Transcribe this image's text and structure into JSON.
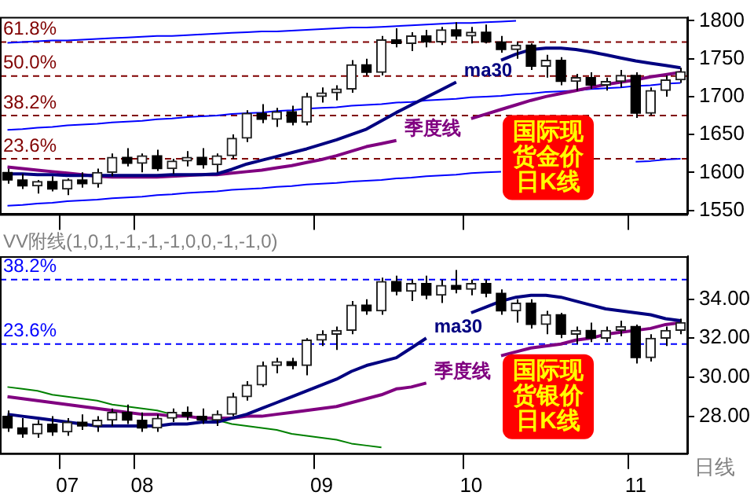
{
  "chart_data": [
    {
      "type": "candlestick",
      "tick_labels": "y",
      "categories": [
        null,
        null,
        null,
        null,
        "07",
        null,
        null,
        null,
        null,
        "08",
        null,
        null,
        null,
        null,
        null,
        null,
        null,
        null,
        null,
        null,
        null,
        "09",
        null,
        null,
        null,
        null,
        null,
        null,
        null,
        null,
        null,
        "10",
        null,
        null,
        null,
        null,
        null,
        null,
        null,
        null,
        null,
        null,
        "11",
        null,
        null,
        null
      ],
      "ohlc": [
        [
          1600,
          1605,
          1585,
          1590
        ],
        [
          1590,
          1598,
          1578,
          1582
        ],
        [
          1582,
          1590,
          1572,
          1588
        ],
        [
          1588,
          1595,
          1575,
          1578
        ],
        [
          1578,
          1592,
          1570,
          1590
        ],
        [
          1590,
          1600,
          1580,
          1585
        ],
        [
          1585,
          1605,
          1580,
          1600
        ],
        [
          1600,
          1625,
          1595,
          1620
        ],
        [
          1620,
          1632,
          1608,
          1612
        ],
        [
          1612,
          1625,
          1600,
          1622
        ],
        [
          1622,
          1630,
          1602,
          1605
        ],
        [
          1605,
          1618,
          1598,
          1615
        ],
        [
          1615,
          1628,
          1608,
          1620
        ],
        [
          1620,
          1632,
          1605,
          1610
        ],
        [
          1610,
          1625,
          1600,
          1622
        ],
        [
          1622,
          1650,
          1618,
          1645
        ],
        [
          1645,
          1682,
          1640,
          1678
        ],
        [
          1678,
          1690,
          1665,
          1670
        ],
        [
          1670,
          1685,
          1660,
          1680
        ],
        [
          1680,
          1688,
          1662,
          1666
        ],
        [
          1666,
          1705,
          1662,
          1700
        ],
        [
          1700,
          1712,
          1692,
          1705
        ],
        [
          1705,
          1715,
          1695,
          1710
        ],
        [
          1710,
          1748,
          1705,
          1742
        ],
        [
          1742,
          1750,
          1728,
          1732
        ],
        [
          1732,
          1780,
          1728,
          1775
        ],
        [
          1775,
          1790,
          1765,
          1770
        ],
        [
          1770,
          1785,
          1760,
          1780
        ],
        [
          1780,
          1788,
          1765,
          1772
        ],
        [
          1772,
          1792,
          1768,
          1788
        ],
        [
          1788,
          1798,
          1775,
          1780
        ],
        [
          1780,
          1792,
          1770,
          1785
        ],
        [
          1785,
          1795,
          1770,
          1772
        ],
        [
          1772,
          1780,
          1758,
          1762
        ],
        [
          1762,
          1772,
          1750,
          1768
        ],
        [
          1768,
          1770,
          1735,
          1740
        ],
        [
          1740,
          1755,
          1725,
          1748
        ],
        [
          1748,
          1752,
          1715,
          1720
        ],
        [
          1720,
          1730,
          1708,
          1725
        ],
        [
          1725,
          1732,
          1710,
          1715
        ],
        [
          1715,
          1725,
          1708,
          1720
        ],
        [
          1720,
          1735,
          1712,
          1728
        ],
        [
          1728,
          1732,
          1672,
          1678
        ],
        [
          1678,
          1712,
          1675,
          1708
        ],
        [
          1708,
          1728,
          1700,
          1722
        ],
        [
          1722,
          1738,
          1718,
          1733
        ]
      ],
      "series": [
        {
          "type": "line",
          "name": "ma30",
          "color": "#000080",
          "values": [
            1598,
            1598,
            1597,
            1597,
            1596,
            1596,
            1596,
            1596,
            1596,
            1596,
            1596,
            1597,
            1597,
            1597,
            1598,
            1604,
            1611,
            1616,
            1621,
            1626,
            1631,
            1637,
            1643,
            1650,
            1657,
            1668,
            1679,
            1689,
            1699,
            1709,
            1719,
            null,
            null,
            1748,
            1756,
            1762,
            1764,
            1764,
            1762,
            1759,
            1755,
            1751,
            1747,
            1744,
            1741,
            1738
          ]
        },
        {
          "type": "line",
          "name": "季度线",
          "color": "#800080",
          "values": [
            1607,
            1605,
            1603,
            1601,
            1599,
            1597,
            1595,
            1594,
            1594,
            1594,
            1594,
            1595,
            1596,
            1597,
            1597,
            1599,
            1601,
            1603,
            1606,
            1609,
            1613,
            1617,
            1622,
            1628,
            1634,
            1638,
            1642,
            null,
            null,
            null,
            null,
            1671,
            1677,
            1683,
            1689,
            1695,
            1700,
            1704,
            1708,
            1712,
            1716,
            1719,
            1722,
            1726,
            1729,
            1732
          ]
        },
        {
          "type": "line",
          "color": "#0000ff",
          "values": [
            1771,
            1772,
            1773,
            1774,
            1774,
            1775,
            1776,
            1777,
            1778,
            1779,
            1780,
            1780,
            1781,
            1782,
            1783,
            1784,
            1785,
            1786,
            1786,
            1787,
            1788,
            1789,
            1790,
            1791,
            1791,
            1792,
            1793,
            1794,
            1795,
            1796,
            1797,
            1797,
            1798,
            1799,
            1800,
            null,
            null,
            null,
            null,
            null,
            null,
            null,
            null,
            null,
            null,
            null
          ]
        },
        {
          "type": "line",
          "color": "#0000ff",
          "values": [
            1656,
            1657,
            1659,
            1660,
            1662,
            1663,
            1664,
            1666,
            1667,
            1668,
            1670,
            1671,
            1673,
            1674,
            1675,
            1677,
            1678,
            1679,
            1681,
            1682,
            1684,
            1685,
            1686,
            1688,
            1689,
            1690,
            1692,
            1693,
            1695,
            1696,
            1697,
            1699,
            1700,
            1701,
            1703,
            1704,
            1706,
            1707,
            1708,
            1710,
            1711,
            1712,
            1714,
            1715,
            1717,
            1718
          ]
        },
        {
          "type": "line",
          "color": "#0000ff",
          "values": [
            1556,
            1557,
            1559,
            1560,
            1562,
            1563,
            1564,
            1566,
            1567,
            1568,
            1570,
            1571,
            1573,
            1574,
            1575,
            1577,
            1578,
            1579,
            1581,
            1582,
            1584,
            1585,
            1586,
            1588,
            1589,
            1590,
            1592,
            1593,
            1595,
            1596,
            1597,
            1599,
            1600,
            1601,
            null,
            null,
            null,
            null,
            null,
            null,
            null,
            null,
            1614,
            1615,
            1617,
            1618
          ]
        }
      ],
      "ylim": [
        1545,
        1805
      ],
      "yticks": [
        1550,
        1600,
        1650,
        1700,
        1750,
        1800
      ],
      "ref_lines": [
        {
          "axis": "y",
          "value": 1772,
          "color": "#800000",
          "line_style": "dashed"
        },
        {
          "axis": "y",
          "value": 1727,
          "color": "#800000",
          "line_style": "dashed"
        },
        {
          "axis": "y",
          "value": 1675,
          "color": "#800000",
          "line_style": "dashed"
        },
        {
          "axis": "y",
          "value": 1618,
          "color": "#800000",
          "line_style": "dashed"
        }
      ],
      "annotations": [
        {
          "text": "61.8%",
          "y": 1772
        },
        {
          "text": "50.0%",
          "y": 1727
        },
        {
          "text": "38.2%",
          "y": 1675
        },
        {
          "text": "23.6%",
          "y": 1618
        },
        "国际现货金价日K线"
      ]
    },
    {
      "type": "candlestick",
      "title": "VV附线(1,0,1,-1,-1,-1,0,0,-1,-1,0)",
      "xlabel": "日线",
      "categories": [
        null,
        null,
        null,
        null,
        "07",
        null,
        null,
        null,
        null,
        "08",
        null,
        null,
        null,
        null,
        null,
        null,
        null,
        null,
        null,
        null,
        null,
        "09",
        null,
        null,
        null,
        null,
        null,
        null,
        null,
        null,
        null,
        "10",
        null,
        null,
        null,
        null,
        null,
        null,
        null,
        null,
        null,
        null,
        "11",
        null,
        null,
        null
      ],
      "ohlc": [
        [
          28.0,
          28.3,
          27.2,
          27.4
        ],
        [
          27.4,
          27.9,
          26.9,
          27.1
        ],
        [
          27.1,
          27.8,
          26.9,
          27.6
        ],
        [
          27.6,
          28.0,
          27.0,
          27.2
        ],
        [
          27.2,
          27.9,
          27.0,
          27.7
        ],
        [
          27.7,
          28.1,
          27.3,
          27.5
        ],
        [
          27.5,
          28.0,
          27.2,
          27.8
        ],
        [
          27.8,
          28.4,
          27.5,
          28.2
        ],
        [
          28.2,
          28.6,
          27.6,
          27.8
        ],
        [
          27.8,
          28.2,
          27.2,
          27.4
        ],
        [
          27.4,
          28.1,
          27.2,
          27.9
        ],
        [
          27.9,
          28.4,
          27.7,
          28.2
        ],
        [
          28.2,
          28.5,
          27.8,
          28.0
        ],
        [
          28.0,
          28.4,
          27.6,
          27.8
        ],
        [
          27.8,
          28.3,
          27.5,
          28.1
        ],
        [
          28.1,
          29.2,
          28.0,
          29.0
        ],
        [
          29.0,
          29.8,
          28.8,
          29.6
        ],
        [
          29.6,
          30.8,
          29.5,
          30.6
        ],
        [
          30.6,
          31.0,
          30.2,
          30.8
        ],
        [
          30.8,
          31.0,
          30.4,
          30.6
        ],
        [
          30.6,
          32.0,
          30.1,
          31.9
        ],
        [
          31.9,
          32.4,
          31.6,
          32.2
        ],
        [
          32.2,
          32.6,
          31.4,
          32.4
        ],
        [
          32.4,
          33.9,
          32.2,
          33.7
        ],
        [
          33.7,
          34.0,
          33.2,
          33.4
        ],
        [
          33.4,
          35.1,
          33.2,
          34.9
        ],
        [
          34.9,
          35.2,
          34.2,
          34.4
        ],
        [
          34.4,
          35.0,
          33.9,
          34.8
        ],
        [
          34.8,
          35.2,
          34.0,
          34.2
        ],
        [
          34.2,
          35.0,
          33.8,
          34.7
        ],
        [
          34.7,
          35.5,
          34.3,
          34.5
        ],
        [
          34.5,
          35.0,
          34.2,
          34.8
        ],
        [
          34.8,
          35.0,
          34.1,
          34.3
        ],
        [
          34.3,
          34.5,
          33.2,
          33.4
        ],
        [
          33.4,
          34.0,
          32.8,
          33.8
        ],
        [
          33.8,
          34.0,
          32.5,
          32.7
        ],
        [
          32.7,
          33.4,
          32.2,
          33.2
        ],
        [
          33.2,
          33.3,
          32.0,
          32.2
        ],
        [
          32.2,
          32.6,
          31.7,
          32.4
        ],
        [
          32.4,
          32.8,
          31.8,
          32.0
        ],
        [
          32.0,
          32.6,
          31.8,
          32.4
        ],
        [
          32.4,
          32.9,
          32.1,
          32.6
        ],
        [
          32.6,
          32.7,
          30.7,
          31.0
        ],
        [
          31.0,
          32.2,
          30.8,
          32.0
        ],
        [
          32.0,
          32.6,
          31.6,
          32.4
        ],
        [
          32.4,
          33.0,
          32.2,
          32.8
        ]
      ],
      "series": [
        {
          "type": "line",
          "name": "ma30",
          "color": "#000080",
          "values": [
            28.1,
            28.0,
            27.9,
            27.8,
            27.7,
            27.6,
            27.5,
            27.5,
            27.5,
            27.5,
            27.5,
            27.6,
            27.6,
            27.7,
            27.7,
            27.9,
            28.1,
            28.4,
            28.7,
            29.0,
            29.3,
            29.6,
            29.9,
            30.3,
            30.6,
            30.8,
            31.0,
            31.5,
            32.0,
            null,
            null,
            33.3,
            33.6,
            33.9,
            34.1,
            34.2,
            34.2,
            34.1,
            33.9,
            33.7,
            33.5,
            33.4,
            33.3,
            33.2,
            33.0,
            32.9
          ]
        },
        {
          "type": "line",
          "name": "季度线",
          "color": "#800080",
          "values": [
            29.0,
            28.9,
            28.8,
            28.7,
            28.6,
            28.5,
            28.4,
            28.3,
            28.2,
            28.1,
            28.1,
            28.0,
            28.0,
            27.9,
            27.9,
            27.9,
            28.0,
            28.0,
            28.1,
            28.2,
            28.3,
            28.4,
            28.5,
            28.7,
            28.9,
            29.1,
            29.4,
            29.5,
            29.7,
            null,
            null,
            null,
            null,
            31.1,
            31.3,
            31.5,
            31.6,
            31.7,
            31.9,
            32.0,
            32.2,
            32.3,
            32.4,
            32.5,
            32.7,
            32.8
          ]
        },
        {
          "type": "line",
          "color": "#008000",
          "values": [
            29.5,
            29.4,
            29.3,
            29.1,
            29.0,
            28.9,
            28.8,
            28.6,
            28.5,
            28.4,
            28.3,
            28.1,
            28.0,
            27.9,
            27.8,
            27.6,
            27.5,
            27.4,
            27.3,
            27.1,
            27.0,
            26.9,
            26.8,
            26.6,
            26.5,
            26.4,
            null,
            null,
            null,
            null,
            null,
            null,
            null,
            null,
            null,
            null,
            null,
            null,
            null,
            null,
            null,
            null,
            null,
            null,
            null,
            null
          ]
        }
      ],
      "ylim": [
        26.1,
        36.2
      ],
      "yticks": [
        {
          "value": 28,
          "label": "28.00"
        },
        {
          "value": 30,
          "label": "30.00"
        },
        {
          "value": 32,
          "label": "32.00"
        },
        {
          "value": 34,
          "label": "34.00"
        }
      ],
      "ref_lines": [
        {
          "axis": "y",
          "value": 35.0,
          "color": "#0000ff",
          "line_style": "dashed"
        },
        {
          "axis": "y",
          "value": 31.7,
          "color": "#0000ff",
          "line_style": "dashed"
        }
      ],
      "annotations": [
        {
          "text": "38.2%",
          "y": 35.0
        },
        {
          "text": "23.6%",
          "y": 31.7
        },
        "国际现货银价日K线"
      ]
    }
  ]
}
